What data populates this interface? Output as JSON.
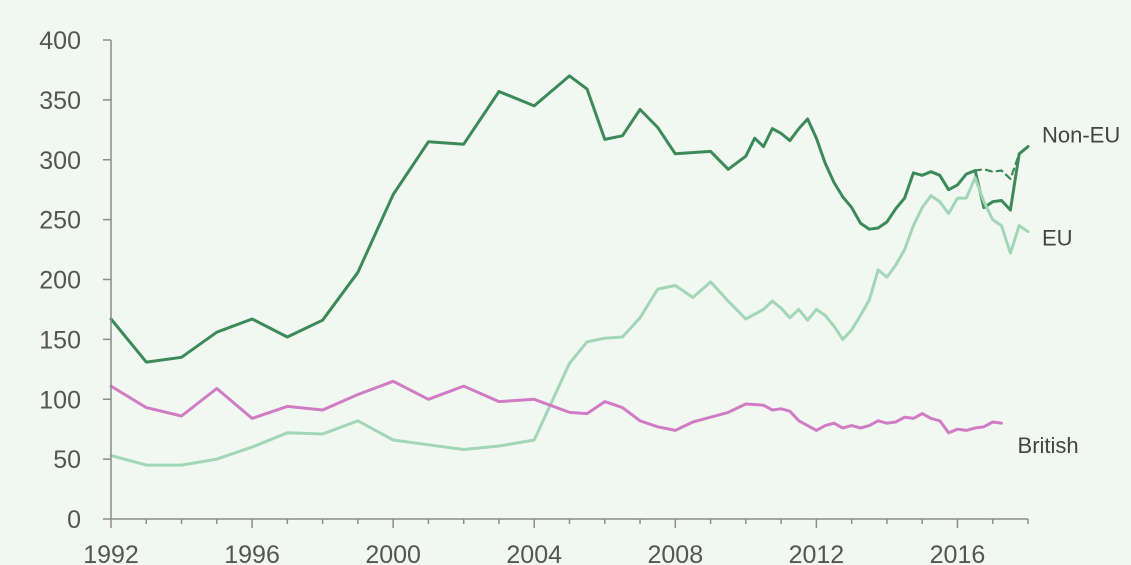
{
  "chart_data": {
    "type": "line",
    "title": "",
    "xlabel": "",
    "ylabel": "",
    "xlim": [
      1992,
      2018
    ],
    "ylim": [
      0,
      400
    ],
    "y_ticks": [
      0,
      50,
      100,
      150,
      200,
      250,
      300,
      350,
      400
    ],
    "x_ticks": [
      1992,
      1996,
      2000,
      2004,
      2008,
      2012,
      2016
    ],
    "y_tick_labels": [
      "0",
      "50",
      "100",
      "150",
      "200",
      "250",
      "300",
      "350",
      "400"
    ],
    "x_tick_labels": [
      "1992",
      "1996",
      "2000",
      "2004",
      "2008",
      "2012",
      "2016"
    ],
    "grid": false,
    "legend": "direct labels at right end of lines",
    "background_color": "#f1f8f1",
    "series": [
      {
        "name": "Non-EU",
        "color": "#3c8a58",
        "points": [
          [
            1992,
            167
          ],
          [
            1993,
            131
          ],
          [
            1994,
            135
          ],
          [
            1995,
            156
          ],
          [
            1996,
            167
          ],
          [
            1997,
            152
          ],
          [
            1998,
            166
          ],
          [
            1999,
            206
          ],
          [
            2000,
            271
          ],
          [
            2001,
            315
          ],
          [
            2002,
            313
          ],
          [
            2003,
            357
          ],
          [
            2004,
            345
          ],
          [
            2005,
            370
          ],
          [
            2005.5,
            359
          ],
          [
            2006,
            317
          ],
          [
            2006.5,
            320
          ],
          [
            2007,
            342
          ],
          [
            2007.5,
            327
          ],
          [
            2008,
            305
          ],
          [
            2009,
            307
          ],
          [
            2009.5,
            292
          ],
          [
            2010,
            303
          ],
          [
            2010.25,
            318
          ],
          [
            2010.5,
            311
          ],
          [
            2010.75,
            326
          ],
          [
            2011,
            322
          ],
          [
            2011.25,
            316
          ],
          [
            2011.5,
            326
          ],
          [
            2011.75,
            334
          ],
          [
            2012,
            318
          ],
          [
            2012.25,
            297
          ],
          [
            2012.5,
            281
          ],
          [
            2012.75,
            269
          ],
          [
            2013,
            260
          ],
          [
            2013.25,
            247
          ],
          [
            2013.5,
            242
          ],
          [
            2013.75,
            243
          ],
          [
            2014,
            248
          ],
          [
            2014.25,
            259
          ],
          [
            2014.5,
            268
          ],
          [
            2014.75,
            289
          ],
          [
            2015,
            287
          ],
          [
            2015.25,
            290
          ],
          [
            2015.5,
            287
          ],
          [
            2015.75,
            275
          ],
          [
            2016,
            279
          ],
          [
            2016.25,
            288
          ],
          [
            2016.5,
            291
          ],
          [
            2016.75,
            260
          ],
          [
            2017,
            265
          ],
          [
            2017.25,
            266
          ],
          [
            2017.5,
            258
          ],
          [
            2017.75,
            305
          ],
          [
            2018,
            311
          ]
        ]
      },
      {
        "name": "",
        "color": "#3c8a58",
        "dashed": true,
        "points": [
          [
            2016.5,
            291
          ],
          [
            2016.75,
            292
          ],
          [
            2017,
            290
          ],
          [
            2017.25,
            291
          ],
          [
            2017.5,
            284
          ],
          [
            2017.75,
            305
          ]
        ]
      },
      {
        "name": "EU",
        "color": "#a2d6b8",
        "points": [
          [
            1992,
            53
          ],
          [
            1993,
            45
          ],
          [
            1994,
            45
          ],
          [
            1995,
            50
          ],
          [
            1996,
            60
          ],
          [
            1997,
            72
          ],
          [
            1998,
            71
          ],
          [
            1999,
            82
          ],
          [
            2000,
            66
          ],
          [
            2001,
            62
          ],
          [
            2002,
            58
          ],
          [
            2003,
            61
          ],
          [
            2004,
            66
          ],
          [
            2005,
            130
          ],
          [
            2005.5,
            148
          ],
          [
            2006,
            151
          ],
          [
            2006.5,
            152
          ],
          [
            2007,
            168
          ],
          [
            2007.5,
            192
          ],
          [
            2008,
            195
          ],
          [
            2008.5,
            185
          ],
          [
            2009,
            198
          ],
          [
            2009.5,
            182
          ],
          [
            2010,
            167
          ],
          [
            2010.5,
            175
          ],
          [
            2010.75,
            182
          ],
          [
            2011,
            176
          ],
          [
            2011.25,
            168
          ],
          [
            2011.5,
            175
          ],
          [
            2011.75,
            166
          ],
          [
            2012,
            175
          ],
          [
            2012.25,
            170
          ],
          [
            2012.5,
            161
          ],
          [
            2012.75,
            150
          ],
          [
            2013,
            158
          ],
          [
            2013.25,
            170
          ],
          [
            2013.5,
            183
          ],
          [
            2013.75,
            208
          ],
          [
            2014,
            202
          ],
          [
            2014.25,
            212
          ],
          [
            2014.5,
            225
          ],
          [
            2014.75,
            245
          ],
          [
            2015,
            260
          ],
          [
            2015.25,
            270
          ],
          [
            2015.5,
            265
          ],
          [
            2015.75,
            255
          ],
          [
            2016,
            268
          ],
          [
            2016.25,
            268
          ],
          [
            2016.5,
            285
          ],
          [
            2016.75,
            265
          ],
          [
            2017,
            250
          ],
          [
            2017.25,
            245
          ],
          [
            2017.5,
            222
          ],
          [
            2017.75,
            245
          ],
          [
            2018,
            240
          ]
        ]
      },
      {
        "name": "British",
        "color": "#d07cc4",
        "points": [
          [
            1992,
            111
          ],
          [
            1993,
            93
          ],
          [
            1994,
            86
          ],
          [
            1995,
            109
          ],
          [
            1996,
            84
          ],
          [
            1997,
            94
          ],
          [
            1998,
            91
          ],
          [
            1999,
            104
          ],
          [
            2000,
            115
          ],
          [
            2001,
            100
          ],
          [
            2002,
            111
          ],
          [
            2003,
            98
          ],
          [
            2004,
            100
          ],
          [
            2005,
            89
          ],
          [
            2005.5,
            88
          ],
          [
            2006,
            98
          ],
          [
            2006.5,
            93
          ],
          [
            2007,
            82
          ],
          [
            2007.5,
            77
          ],
          [
            2008,
            74
          ],
          [
            2008.5,
            81
          ],
          [
            2009,
            85
          ],
          [
            2009.5,
            89
          ],
          [
            2010,
            96
          ],
          [
            2010.5,
            95
          ],
          [
            2010.75,
            91
          ],
          [
            2011,
            92
          ],
          [
            2011.25,
            90
          ],
          [
            2011.5,
            82
          ],
          [
            2011.75,
            78
          ],
          [
            2012,
            74
          ],
          [
            2012.25,
            78
          ],
          [
            2012.5,
            80
          ],
          [
            2012.75,
            76
          ],
          [
            2013,
            78
          ],
          [
            2013.25,
            76
          ],
          [
            2013.5,
            78
          ],
          [
            2013.75,
            82
          ],
          [
            2014,
            80
          ],
          [
            2014.25,
            81
          ],
          [
            2014.5,
            85
          ],
          [
            2014.75,
            84
          ],
          [
            2015,
            88
          ],
          [
            2015.25,
            84
          ],
          [
            2015.5,
            82
          ],
          [
            2015.75,
            72
          ],
          [
            2016,
            75
          ],
          [
            2016.25,
            74
          ],
          [
            2016.5,
            76
          ],
          [
            2016.75,
            77
          ],
          [
            2017,
            81
          ],
          [
            2017.25,
            80
          ]
        ]
      }
    ]
  }
}
